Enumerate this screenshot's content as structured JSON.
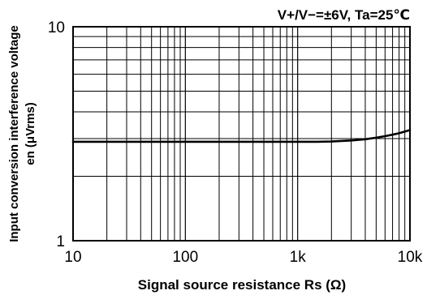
{
  "chart_data": {
    "type": "line",
    "title": "V+/V−=±6V, Ta=25℃",
    "xlabel": "Signal source resistance Rs (Ω)",
    "ylabel_line1": "Input conversion interference voltage",
    "ylabel_line2": "en (μVrms)",
    "x_scale": "log",
    "y_scale": "log",
    "xlim": [
      10,
      10000
    ],
    "ylim": [
      1,
      10
    ],
    "x_ticks": [
      {
        "value": 10,
        "label": "10"
      },
      {
        "value": 100,
        "label": "100"
      },
      {
        "value": 1000,
        "label": "1k"
      },
      {
        "value": 10000,
        "label": "10k"
      }
    ],
    "y_ticks": [
      {
        "value": 1,
        "label": "1"
      },
      {
        "value": 10,
        "label": "10"
      }
    ],
    "grid": true,
    "series": [
      {
        "x": [
          10,
          20,
          50,
          100,
          200,
          500,
          1000,
          1500,
          2000,
          3000,
          4000,
          5000,
          6000,
          7000,
          8000,
          10000
        ],
        "y": [
          2.9,
          2.9,
          2.9,
          2.9,
          2.9,
          2.9,
          2.9,
          2.9,
          2.91,
          2.94,
          2.98,
          3.03,
          3.08,
          3.13,
          3.18,
          3.29
        ]
      }
    ]
  }
}
